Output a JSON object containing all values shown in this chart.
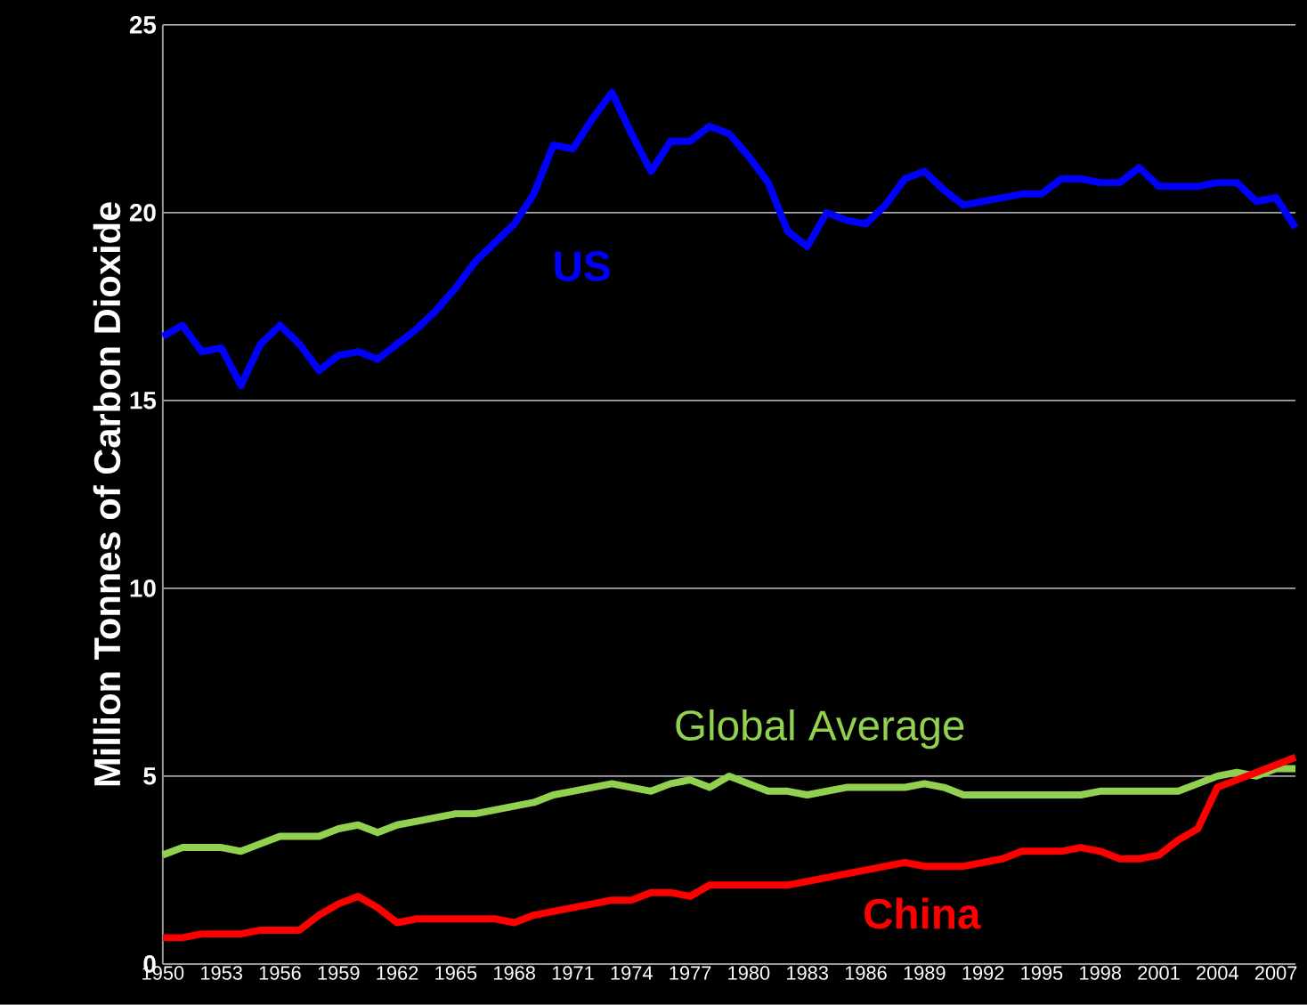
{
  "chart_data": {
    "type": "line",
    "ylabel": "Million Tonnes of Carbon Dioxide",
    "x": [
      1950,
      1951,
      1952,
      1953,
      1954,
      1955,
      1956,
      1957,
      1958,
      1959,
      1960,
      1961,
      1962,
      1963,
      1964,
      1965,
      1966,
      1967,
      1968,
      1969,
      1970,
      1971,
      1972,
      1973,
      1974,
      1975,
      1976,
      1977,
      1978,
      1979,
      1980,
      1981,
      1982,
      1983,
      1984,
      1985,
      1986,
      1987,
      1988,
      1989,
      1990,
      1991,
      1992,
      1993,
      1994,
      1995,
      1996,
      1997,
      1998,
      1999,
      2000,
      2001,
      2002,
      2003,
      2004,
      2005,
      2006,
      2007,
      2008
    ],
    "series": [
      {
        "name": "US",
        "color": "#0000ff",
        "values": [
          16.7,
          17.0,
          16.3,
          16.4,
          15.4,
          16.5,
          17.0,
          16.5,
          15.8,
          16.2,
          16.3,
          16.1,
          16.5,
          16.9,
          17.4,
          18.0,
          18.7,
          19.2,
          19.7,
          20.5,
          21.8,
          21.7,
          22.5,
          23.2,
          22.1,
          21.1,
          21.9,
          21.9,
          22.3,
          22.1,
          21.5,
          20.8,
          19.5,
          19.1,
          20.0,
          19.8,
          19.7,
          20.2,
          20.9,
          21.1,
          20.6,
          20.2,
          20.3,
          20.4,
          20.5,
          20.5,
          20.9,
          20.9,
          20.8,
          20.8,
          21.2,
          20.7,
          20.7,
          20.7,
          20.8,
          20.8,
          20.3,
          20.4,
          19.6
        ]
      },
      {
        "name": "Global Average",
        "color": "#92d050",
        "values": [
          2.9,
          3.1,
          3.1,
          3.1,
          3.0,
          3.2,
          3.4,
          3.4,
          3.4,
          3.6,
          3.7,
          3.5,
          3.7,
          3.8,
          3.9,
          4.0,
          4.0,
          4.1,
          4.2,
          4.3,
          4.5,
          4.6,
          4.7,
          4.8,
          4.7,
          4.6,
          4.8,
          4.9,
          4.7,
          5.0,
          4.8,
          4.6,
          4.6,
          4.5,
          4.6,
          4.7,
          4.7,
          4.7,
          4.7,
          4.8,
          4.7,
          4.5,
          4.5,
          4.5,
          4.5,
          4.5,
          4.5,
          4.5,
          4.6,
          4.6,
          4.6,
          4.6,
          4.6,
          4.8,
          5.0,
          5.1,
          5.0,
          5.2,
          5.2
        ]
      },
      {
        "name": "China",
        "color": "#ff0000",
        "values": [
          0.7,
          0.7,
          0.8,
          0.8,
          0.8,
          0.9,
          0.9,
          0.9,
          1.3,
          1.6,
          1.8,
          1.5,
          1.1,
          1.2,
          1.2,
          1.2,
          1.2,
          1.2,
          1.1,
          1.3,
          1.4,
          1.5,
          1.6,
          1.7,
          1.7,
          1.9,
          1.9,
          1.8,
          2.1,
          2.1,
          2.1,
          2.1,
          2.1,
          2.2,
          2.3,
          2.4,
          2.5,
          2.6,
          2.7,
          2.6,
          2.6,
          2.6,
          2.7,
          2.8,
          3.0,
          3.0,
          3.0,
          3.1,
          3.0,
          2.8,
          2.8,
          2.9,
          3.3,
          3.6,
          4.7,
          4.9,
          5.1,
          5.3,
          5.5
        ]
      }
    ],
    "xlim": [
      1950,
      2008
    ],
    "xticks": [
      1950,
      1953,
      1956,
      1959,
      1962,
      1965,
      1968,
      1971,
      1974,
      1977,
      1980,
      1983,
      1986,
      1989,
      1992,
      1995,
      1998,
      2001,
      2004,
      2007
    ],
    "ylim": [
      0,
      25
    ],
    "yticks": [
      0,
      5,
      10,
      15,
      20,
      25
    ],
    "grid": "y",
    "line_style": "solid",
    "marker": "none"
  }
}
